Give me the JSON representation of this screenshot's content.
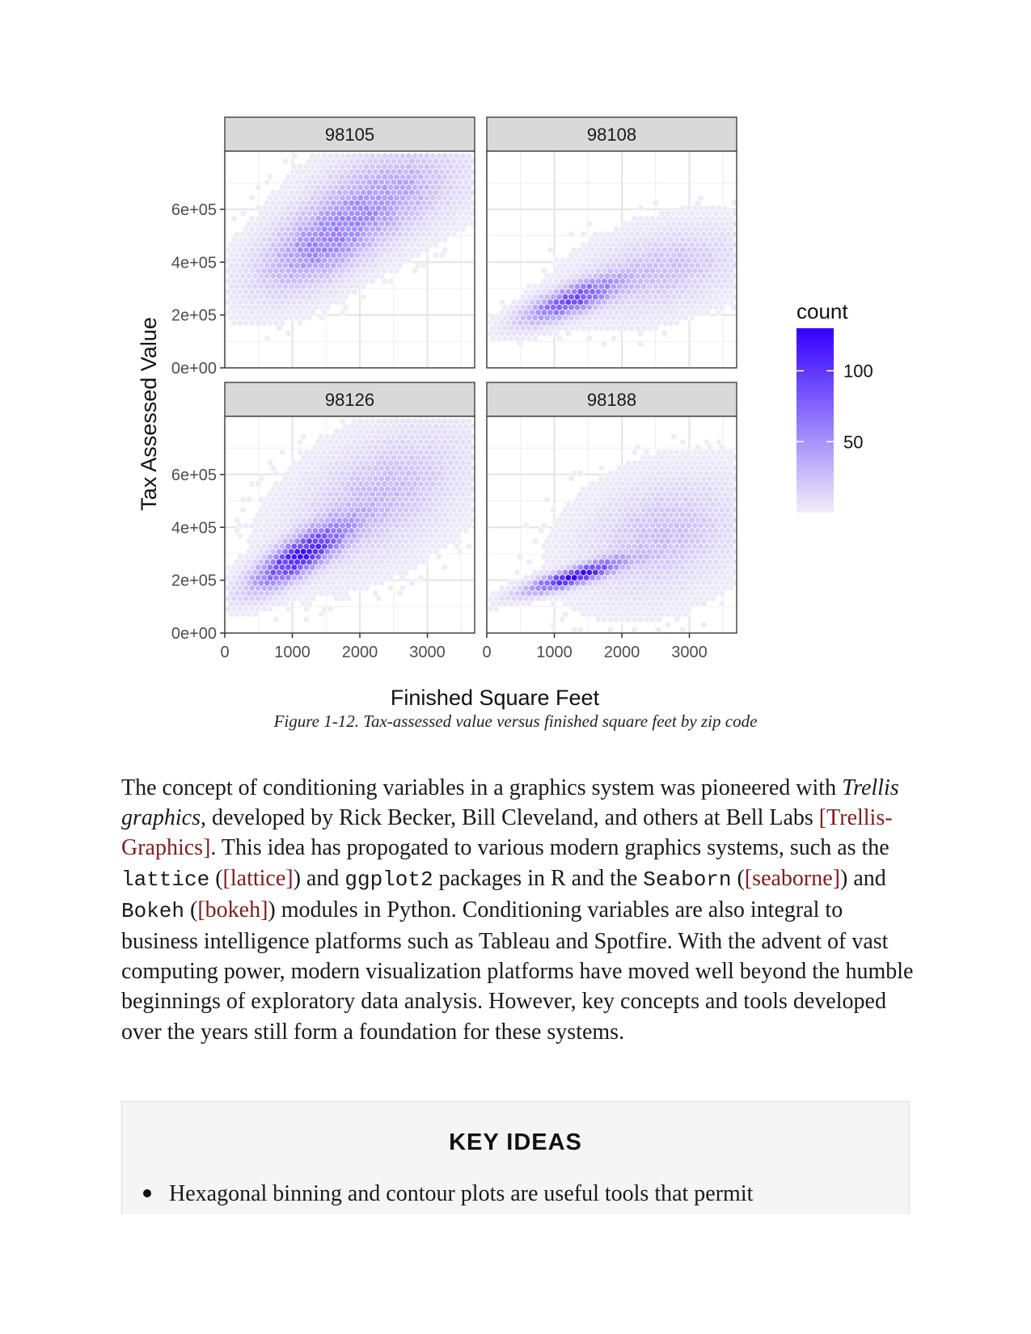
{
  "figure": {
    "chart_data": {
      "type": "hexbin",
      "facets": [
        "98105",
        "98108",
        "98126",
        "98188"
      ],
      "xlabel": "Finished Square Feet",
      "ylabel": "Tax Assessed Value",
      "x_ticks": [
        "0",
        "1000",
        "2000",
        "3000"
      ],
      "x_tick_values": [
        0,
        1000,
        2000,
        3000
      ],
      "y_ticks": [
        "0e+00",
        "2e+05",
        "4e+05",
        "6e+05"
      ],
      "y_tick_values": [
        0,
        200000,
        400000,
        600000
      ],
      "xlim": [
        0,
        3700
      ],
      "ylim": [
        0,
        820000
      ],
      "legend": {
        "title": "count",
        "ticks": [
          "100",
          "50"
        ],
        "tick_values": [
          100,
          50
        ],
        "range": [
          0,
          130
        ],
        "color_low": "#f0eef8",
        "color_high": "#3300ff",
        "placement": "right"
      },
      "panels": [
        {
          "facet": "98105",
          "peak_count": 55,
          "clusters": [
            {
              "x": 1500,
              "y": 480000,
              "sx": 650,
              "sy": 120000,
              "rho": 0.6,
              "peak": 55
            },
            {
              "x": 2500,
              "y": 680000,
              "sx": 700,
              "sy": 110000,
              "rho": 0.3,
              "peak": 30
            }
          ]
        },
        {
          "facet": "98108",
          "peak_count": 85,
          "clusters": [
            {
              "x": 1250,
              "y": 255000,
              "sx": 450,
              "sy": 55000,
              "rho": 0.75,
              "peak": 85
            },
            {
              "x": 2600,
              "y": 370000,
              "sx": 750,
              "sy": 100000,
              "rho": 0.4,
              "peak": 25
            }
          ]
        },
        {
          "facet": "98126",
          "peak_count": 110,
          "clusters": [
            {
              "x": 1100,
              "y": 290000,
              "sx": 450,
              "sy": 80000,
              "rho": 0.8,
              "peak": 110
            },
            {
              "x": 2300,
              "y": 520000,
              "sx": 800,
              "sy": 160000,
              "rho": 0.5,
              "peak": 28
            }
          ]
        },
        {
          "facet": "98188",
          "peak_count": 120,
          "clusters": [
            {
              "x": 1300,
              "y": 215000,
              "sx": 450,
              "sy": 40000,
              "rho": 0.85,
              "peak": 120
            },
            {
              "x": 2600,
              "y": 370000,
              "sx": 750,
              "sy": 140000,
              "rho": 0.3,
              "peak": 25
            }
          ]
        }
      ]
    },
    "caption": "Figure 1-12. Tax-assessed value versus finished square feet by zip code"
  },
  "paragraph": {
    "s1": "The concept of conditioning variables in a graphics system was pioneered with ",
    "s2": "Trellis graphics",
    "s3": ", developed by Rick Becker, Bill Cleveland, and others at Bell Labs ",
    "l1": "[Trellis-Graphics]",
    "s4": ". This idea has propogated to various modern graphics systems, such as the ",
    "c1": "lattice",
    "s5": " (",
    "l2": "[lattice]",
    "s6": ") and ",
    "c2": "ggplot2",
    "s7": " packages in R and the ",
    "c3": "Seaborn",
    "s8": " (",
    "l3": "[seaborne]",
    "s9": ") and ",
    "c4": "Bokeh",
    "s10": " (",
    "l4": "[bokeh]",
    "s11": ") modules in Python. Conditioning variables are also integral to business intelligence platforms such as Tableau and Spotfire. With the advent of vast computing power, modern visualization platforms have moved well beyond the humble beginnings of exploratory data analysis. However, key concepts and tools developed over the years still form a foundation for these systems."
  },
  "key_ideas": {
    "heading": "KEY IDEAS",
    "bullet": "Hexagonal binning and contour plots are useful tools that permit"
  }
}
